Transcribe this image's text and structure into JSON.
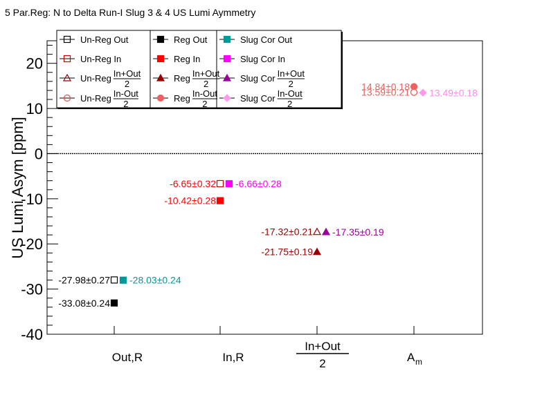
{
  "chart_data": {
    "type": "scatter",
    "title": "5 Par.Reg: N to Delta Run-I Slug 3 & 4 US Lumi Aymmetry",
    "ylabel": "US Lumi Asym [ppm]",
    "xlabel": "",
    "ylim": [
      -40,
      25
    ],
    "yticks": [
      "20",
      "10",
      "0",
      "-10",
      "-20",
      "-30",
      "-40"
    ],
    "categories": [
      {
        "label": "Out,R"
      },
      {
        "label": "In,R"
      },
      {
        "num": "In+Out",
        "den": "2"
      },
      {
        "label": "A",
        "sub": "m"
      }
    ],
    "legend": {
      "position": "top-left",
      "columns": [
        [
          {
            "text": "Un-Reg Out"
          },
          {
            "text": "Un-Reg In"
          },
          {
            "text": "Un-Reg",
            "num": "In+Out",
            "den": "2"
          },
          {
            "text": "Un-Reg",
            "num": "In-Out",
            "den": "2"
          }
        ],
        [
          {
            "text": "Reg Out"
          },
          {
            "text": "Reg In"
          },
          {
            "text": "Reg",
            "num": "In+Out",
            "den": "2"
          },
          {
            "text": "Reg",
            "num": "In-Out",
            "den": "2"
          }
        ],
        [
          {
            "text": "Slug Cor Out"
          },
          {
            "text": "Slug Cor In"
          },
          {
            "text": "Slug Cor",
            "num": "In+Out",
            "den": "2"
          },
          {
            "text": "Slug Cor",
            "num": "In-Out",
            "den": "2"
          }
        ]
      ]
    },
    "series": [
      {
        "name": "Un-Reg Out",
        "marker": "square-open",
        "color": "#000000",
        "label_color": "#000000",
        "points": [
          {
            "x": "Out,R",
            "y": -27.98,
            "err": 0.27,
            "label": "-27.98±0.27"
          }
        ]
      },
      {
        "name": "Reg Out",
        "marker": "square",
        "color": "#000000",
        "label_color": "#000000",
        "points": [
          {
            "x": "Out,R",
            "y": -33.08,
            "err": 0.24,
            "label": "-33.08±0.24"
          }
        ]
      },
      {
        "name": "Slug Cor Out",
        "marker": "square",
        "color": "#009999",
        "label_color": "#009999",
        "points": [
          {
            "x": "Out,R",
            "y": -28.03,
            "err": 0.24,
            "label": "-28.03±0.24"
          }
        ]
      },
      {
        "name": "Un-Reg In",
        "marker": "square-open",
        "color": "#cc0000",
        "label_color": "#ff0000",
        "points": [
          {
            "x": "In,R",
            "y": -6.65,
            "err": 0.32,
            "label": "-6.65±0.32"
          }
        ]
      },
      {
        "name": "Reg In",
        "marker": "square",
        "color": "#ff0000",
        "label_color": "#ff0000",
        "points": [
          {
            "x": "In,R",
            "y": -10.42,
            "err": 0.28,
            "label": "-10.42±0.28"
          }
        ]
      },
      {
        "name": "Slug Cor In",
        "marker": "square",
        "color": "#ff00ff",
        "label_color": "#ff00ff",
        "points": [
          {
            "x": "In,R",
            "y": -6.66,
            "err": 0.28,
            "label": "-6.66±0.28"
          }
        ]
      },
      {
        "name": "Un-Reg (In+Out)/2",
        "marker": "triangle-open",
        "color": "#990000",
        "label_color": "#990000",
        "points": [
          {
            "x": "(In+Out)/2",
            "y": -17.32,
            "err": 0.21,
            "label": "-17.32±0.21"
          }
        ]
      },
      {
        "name": "Reg (In+Out)/2",
        "marker": "triangle",
        "color": "#990000",
        "label_color": "#990000",
        "points": [
          {
            "x": "(In+Out)/2",
            "y": -21.75,
            "err": 0.19,
            "label": "-21.75±0.19"
          }
        ]
      },
      {
        "name": "Slug Cor (In+Out)/2",
        "marker": "triangle",
        "color": "#990099",
        "label_color": "#990099",
        "points": [
          {
            "x": "(In+Out)/2",
            "y": -17.35,
            "err": 0.19,
            "label": "-17.35±0.19"
          }
        ]
      },
      {
        "name": "Un-Reg (In-Out)/2",
        "marker": "circle-open",
        "color": "#e05050",
        "label_color": "#e06060",
        "points": [
          {
            "x": "A_m",
            "y": 13.59,
            "err": 0.21,
            "label": "13.59±0.21"
          }
        ]
      },
      {
        "name": "Reg (In-Out)/2",
        "marker": "circle",
        "color": "#f06060",
        "label_color": "#f06060",
        "points": [
          {
            "x": "A_m",
            "y": 14.84,
            "err": 0.18,
            "label": "14.84±0.18"
          }
        ]
      },
      {
        "name": "Slug Cor (In-Out)/2",
        "marker": "diamond",
        "color": "#ff99ee",
        "label_color": "#ff88ee",
        "points": [
          {
            "x": "A_m",
            "y": 13.49,
            "err": 0.18,
            "label": "13.49±0.18"
          }
        ]
      }
    ]
  }
}
